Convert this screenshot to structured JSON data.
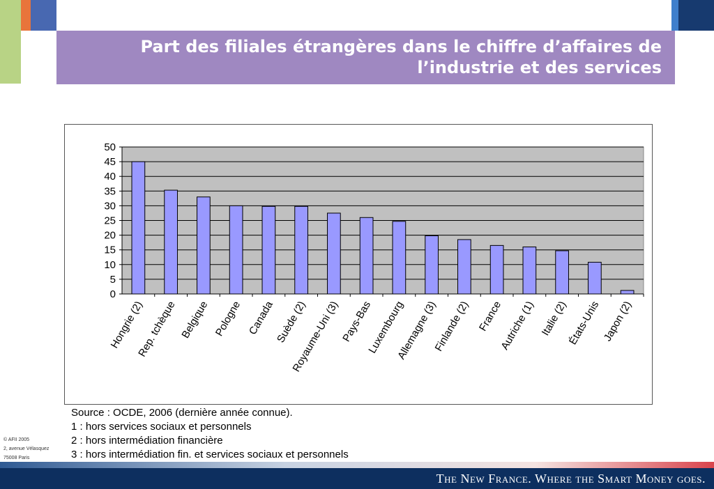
{
  "title": "Part des filiales étrangères dans le chiffre d’affaires de l’industrie et des services",
  "colors": {
    "title_band": "#9f88c1",
    "bar_fill": "#9999ff",
    "plot_bg": "#c0c0c0",
    "footer": "#0d2f5f"
  },
  "chart_data": {
    "type": "bar",
    "title": "",
    "xlabel": "",
    "ylabel": "",
    "ylim": [
      0,
      50
    ],
    "yticks": [
      0,
      5,
      10,
      15,
      20,
      25,
      30,
      35,
      40,
      45,
      50
    ],
    "grid": true,
    "legend": "none",
    "categories": [
      "Hongrie (2)",
      "Rep. tchèque",
      "Belgique",
      "Pologne",
      "Canada",
      "Suède (2)",
      "Royaume-Uni (3)",
      "Pays-Bas",
      "Luxembourg",
      "Allemagne (3)",
      "Finlande (2)",
      "France",
      "Autriche (1)",
      "Italie (2)",
      "États-Unis",
      "Japon (2)"
    ],
    "values": [
      45,
      35.3,
      33,
      30,
      29.8,
      29.8,
      27.5,
      26,
      24.7,
      19.8,
      18.5,
      16.5,
      16,
      14.7,
      10.8,
      1.2
    ]
  },
  "notes": [
    "Source : OCDE, 2006 (dernière année connue).",
    "1 : hors services sociaux et personnels",
    "2 : hors intermédiation financière",
    "3 : hors intermédiation fin. et services sociaux et personnels"
  ],
  "address": [
    "© AFII 2005",
    "2, avenue Vélasquez",
    "75008 Paris"
  ],
  "slogan": "The New France. Where the Smart Money goes."
}
